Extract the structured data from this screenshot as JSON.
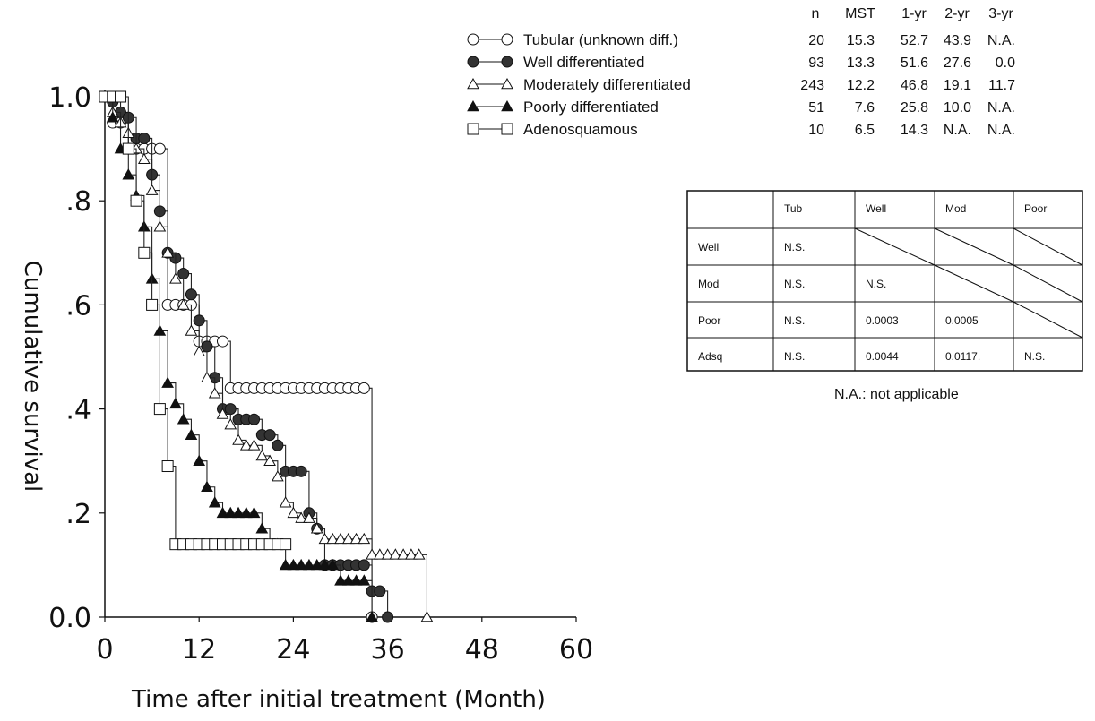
{
  "chart_data": {
    "type": "line",
    "xlabel": "Time after initial treatment (Month)",
    "ylabel": "Cumulative survival",
    "xlim": [
      0,
      60
    ],
    "ylim": [
      0,
      1.0
    ],
    "x_ticks": [
      "0",
      "12",
      "24",
      "36",
      "48",
      "60"
    ],
    "y_ticks": [
      "0.0",
      ".2",
      ".4",
      ".6",
      ".8",
      "1.0"
    ],
    "grid": false,
    "legend_position": "top-right",
    "series": [
      {
        "name": "Tubular (unknown diff.)",
        "marker": "open-circle",
        "x": [
          0,
          1,
          2,
          3,
          4,
          5,
          6,
          7,
          8,
          9,
          10,
          11,
          12,
          13,
          14,
          15,
          16,
          17,
          18,
          19,
          20,
          21,
          22,
          23,
          24,
          25,
          26,
          27,
          28,
          29,
          30,
          31,
          32,
          33,
          34
        ],
        "y": [
          1.0,
          0.95,
          0.95,
          0.9,
          0.9,
          0.9,
          0.9,
          0.9,
          0.6,
          0.6,
          0.6,
          0.6,
          0.53,
          0.53,
          0.53,
          0.53,
          0.44,
          0.44,
          0.44,
          0.44,
          0.44,
          0.44,
          0.44,
          0.44,
          0.44,
          0.44,
          0.44,
          0.44,
          0.44,
          0.44,
          0.44,
          0.44,
          0.44,
          0.44,
          0.0
        ]
      },
      {
        "name": "Well differentiated",
        "marker": "filled-circle",
        "x": [
          0,
          1,
          2,
          3,
          4,
          5,
          6,
          7,
          8,
          9,
          10,
          11,
          12,
          13,
          14,
          15,
          16,
          17,
          18,
          19,
          20,
          21,
          22,
          23,
          24,
          25,
          26,
          27,
          28,
          29,
          30,
          31,
          32,
          33,
          34,
          35,
          36
        ],
        "y": [
          1.0,
          0.99,
          0.97,
          0.96,
          0.92,
          0.92,
          0.85,
          0.78,
          0.7,
          0.69,
          0.66,
          0.62,
          0.57,
          0.52,
          0.46,
          0.4,
          0.4,
          0.38,
          0.38,
          0.38,
          0.35,
          0.35,
          0.33,
          0.28,
          0.28,
          0.28,
          0.2,
          0.17,
          0.1,
          0.1,
          0.1,
          0.1,
          0.1,
          0.1,
          0.05,
          0.05,
          0.0
        ]
      },
      {
        "name": "Moderately differentiated",
        "marker": "open-triangle",
        "x": [
          0,
          1,
          2,
          3,
          4,
          5,
          6,
          7,
          8,
          9,
          10,
          11,
          12,
          13,
          14,
          15,
          16,
          17,
          18,
          19,
          20,
          21,
          22,
          23,
          24,
          25,
          26,
          27,
          28,
          29,
          30,
          31,
          32,
          33,
          34,
          35,
          36,
          37,
          38,
          39,
          40,
          41
        ],
        "y": [
          1.0,
          0.97,
          0.95,
          0.93,
          0.9,
          0.88,
          0.82,
          0.75,
          0.7,
          0.65,
          0.6,
          0.55,
          0.51,
          0.46,
          0.43,
          0.39,
          0.37,
          0.34,
          0.33,
          0.33,
          0.31,
          0.3,
          0.27,
          0.22,
          0.2,
          0.19,
          0.19,
          0.17,
          0.15,
          0.15,
          0.15,
          0.15,
          0.15,
          0.15,
          0.12,
          0.12,
          0.12,
          0.12,
          0.12,
          0.12,
          0.12,
          0.0
        ]
      },
      {
        "name": "Poorly differentiated",
        "marker": "filled-triangle",
        "x": [
          0,
          1,
          2,
          3,
          4,
          5,
          6,
          7,
          8,
          9,
          10,
          11,
          12,
          13,
          14,
          15,
          16,
          17,
          18,
          19,
          20,
          21,
          22,
          23,
          24,
          25,
          26,
          27,
          28,
          29,
          30,
          31,
          32,
          33,
          34
        ],
        "y": [
          1.0,
          0.96,
          0.9,
          0.85,
          0.81,
          0.75,
          0.65,
          0.55,
          0.45,
          0.41,
          0.38,
          0.35,
          0.3,
          0.25,
          0.22,
          0.2,
          0.2,
          0.2,
          0.2,
          0.2,
          0.17,
          0.14,
          0.14,
          0.1,
          0.1,
          0.1,
          0.1,
          0.1,
          0.1,
          0.1,
          0.07,
          0.07,
          0.07,
          0.07,
          0.0
        ]
      },
      {
        "name": "Adenosquamous",
        "marker": "open-square",
        "x": [
          0,
          1,
          2,
          3,
          4,
          5,
          6,
          7,
          8,
          9,
          10,
          11,
          12,
          13,
          14,
          15,
          16,
          17,
          18,
          19,
          20,
          21,
          22,
          23
        ],
        "y": [
          1.0,
          1.0,
          1.0,
          0.9,
          0.8,
          0.7,
          0.6,
          0.4,
          0.29,
          0.14,
          0.14,
          0.14,
          0.14,
          0.14,
          0.14,
          0.14,
          0.14,
          0.14,
          0.14,
          0.14,
          0.14,
          0.14,
          0.14,
          0.14
        ]
      }
    ],
    "stats_header": [
      "n",
      "MST",
      "1-yr",
      "2-yr",
      "3-yr"
    ],
    "stats_rows": [
      [
        "20",
        "15.3",
        "52.7",
        "43.9",
        "N.A."
      ],
      [
        "93",
        "13.3",
        "51.6",
        "27.6",
        "0.0"
      ],
      [
        "243",
        "12.2",
        "46.8",
        "19.1",
        "11.7"
      ],
      [
        "51",
        "7.6",
        "25.8",
        "10.0",
        "N.A."
      ],
      [
        "10",
        "6.5",
        "14.3",
        "N.A.",
        "N.A."
      ]
    ],
    "pvalue_table": {
      "columns": [
        "Tub",
        "Well",
        "Mod",
        "Poor"
      ],
      "rows": [
        {
          "label": "Well",
          "cells": [
            "N.S.",
            null,
            null,
            null
          ]
        },
        {
          "label": "Mod",
          "cells": [
            "N.S.",
            "N.S.",
            null,
            null
          ]
        },
        {
          "label": "Poor",
          "cells": [
            "N.S.",
            "0.0003",
            "0.0005",
            null
          ]
        },
        {
          "label": "Adsq",
          "cells": [
            "N.S.",
            "0.0044",
            "0.0117.",
            "N.S."
          ]
        }
      ]
    },
    "note": "N.A.: not applicable"
  }
}
